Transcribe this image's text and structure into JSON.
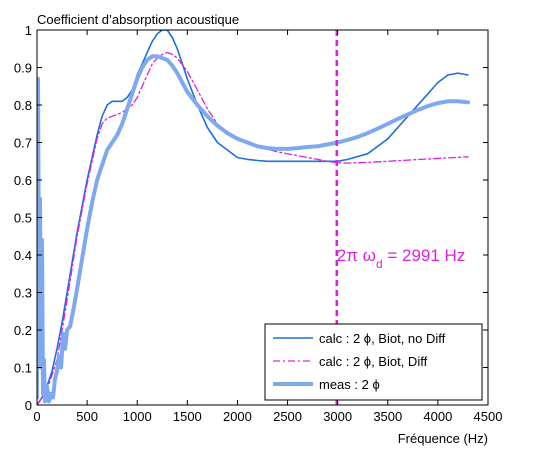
{
  "chart_data": {
    "type": "line",
    "title": "Coefficient d’absorption acoustique",
    "xlabel": "Fréquence (Hz)",
    "ylabel": "",
    "xlim": [
      0,
      4500
    ],
    "ylim": [
      0,
      1
    ],
    "xticks": [
      0,
      500,
      1000,
      1500,
      2000,
      2500,
      3000,
      3500,
      4000,
      4500
    ],
    "yticks": [
      0,
      0.1,
      0.2,
      0.3,
      0.4,
      0.5,
      0.6,
      0.7,
      0.8,
      0.9,
      1
    ],
    "grid": false,
    "legend_position": "bottom-right",
    "vline": {
      "x": 2991,
      "color": "#e020e0",
      "label_main": "2π ω",
      "label_sub": "d",
      "label_tail": " = 2991 Hz",
      "label_y": 0.4
    },
    "series": [
      {
        "name": "calc : 2 ϕ, Biot, no Diff",
        "color": "#1f6fdf",
        "style": "solid",
        "width": 1.6,
        "x": [
          0,
          50,
          100,
          150,
          200,
          250,
          300,
          350,
          400,
          450,
          500,
          550,
          600,
          650,
          700,
          750,
          800,
          850,
          900,
          950,
          1000,
          1050,
          1100,
          1150,
          1200,
          1250,
          1300,
          1350,
          1400,
          1450,
          1500,
          1600,
          1700,
          1800,
          1900,
          2000,
          2100,
          2200,
          2300,
          2500,
          2700,
          2900,
          3000,
          3100,
          3300,
          3500,
          3700,
          3900,
          4000,
          4100,
          4200,
          4300
        ],
        "y": [
          0,
          0.02,
          0.05,
          0.09,
          0.15,
          0.22,
          0.3,
          0.38,
          0.46,
          0.53,
          0.6,
          0.66,
          0.72,
          0.77,
          0.8,
          0.81,
          0.81,
          0.81,
          0.82,
          0.84,
          0.88,
          0.91,
          0.94,
          0.97,
          0.99,
          1.0,
          1.0,
          0.98,
          0.95,
          0.91,
          0.87,
          0.8,
          0.74,
          0.7,
          0.68,
          0.66,
          0.655,
          0.652,
          0.65,
          0.65,
          0.65,
          0.65,
          0.65,
          0.655,
          0.67,
          0.71,
          0.77,
          0.83,
          0.86,
          0.88,
          0.885,
          0.88
        ]
      },
      {
        "name": "calc : 2 ϕ, Biot, Diff",
        "color": "#e020e0",
        "style": "dashdot",
        "width": 1.3,
        "x": [
          0,
          100,
          200,
          300,
          400,
          500,
          550,
          600,
          650,
          700,
          750,
          800,
          850,
          900,
          950,
          1000,
          1050,
          1100,
          1150,
          1200,
          1250,
          1300,
          1350,
          1400,
          1500,
          1600,
          1700,
          1800,
          1900,
          2000,
          2200,
          2400,
          2600,
          2800,
          2900,
          3000,
          3100,
          3300,
          3500,
          3700,
          3900,
          4100,
          4300
        ],
        "y": [
          0,
          0.04,
          0.12,
          0.28,
          0.45,
          0.59,
          0.65,
          0.71,
          0.75,
          0.765,
          0.77,
          0.775,
          0.78,
          0.79,
          0.8,
          0.82,
          0.85,
          0.88,
          0.91,
          0.925,
          0.935,
          0.94,
          0.935,
          0.925,
          0.89,
          0.84,
          0.79,
          0.75,
          0.725,
          0.71,
          0.69,
          0.675,
          0.665,
          0.655,
          0.65,
          0.646,
          0.645,
          0.647,
          0.65,
          0.653,
          0.656,
          0.659,
          0.662
        ]
      },
      {
        "name": "meas : 2 ϕ",
        "color": "#7ea9ef",
        "style": "thick",
        "width": 4,
        "x": [
          0,
          10,
          20,
          30,
          40,
          50,
          60,
          70,
          80,
          100,
          120,
          140,
          160,
          180,
          200,
          220,
          240,
          260,
          280,
          300,
          330,
          360,
          400,
          450,
          500,
          550,
          600,
          650,
          700,
          750,
          800,
          850,
          900,
          950,
          1000,
          1050,
          1100,
          1150,
          1200,
          1250,
          1300,
          1350,
          1400,
          1450,
          1500,
          1600,
          1700,
          1800,
          1900,
          2000,
          2100,
          2200,
          2300,
          2400,
          2500,
          2600,
          2700,
          2800,
          2900,
          3000,
          3100,
          3200,
          3300,
          3400,
          3500,
          3600,
          3700,
          3800,
          3900,
          4000,
          4100,
          4200,
          4300
        ],
        "y": [
          0.02,
          0.87,
          0.3,
          0.55,
          0.1,
          0.44,
          0.03,
          0.12,
          0.01,
          0.05,
          0.01,
          0.03,
          0.02,
          0.07,
          0.09,
          0.13,
          0.1,
          0.19,
          0.15,
          0.2,
          0.21,
          0.25,
          0.31,
          0.39,
          0.47,
          0.54,
          0.6,
          0.64,
          0.68,
          0.7,
          0.72,
          0.75,
          0.79,
          0.83,
          0.87,
          0.9,
          0.92,
          0.93,
          0.93,
          0.925,
          0.92,
          0.905,
          0.885,
          0.86,
          0.835,
          0.8,
          0.77,
          0.745,
          0.725,
          0.71,
          0.7,
          0.69,
          0.685,
          0.683,
          0.683,
          0.685,
          0.688,
          0.69,
          0.695,
          0.7,
          0.707,
          0.715,
          0.725,
          0.737,
          0.75,
          0.763,
          0.775,
          0.787,
          0.797,
          0.805,
          0.81,
          0.81,
          0.807
        ]
      }
    ]
  }
}
